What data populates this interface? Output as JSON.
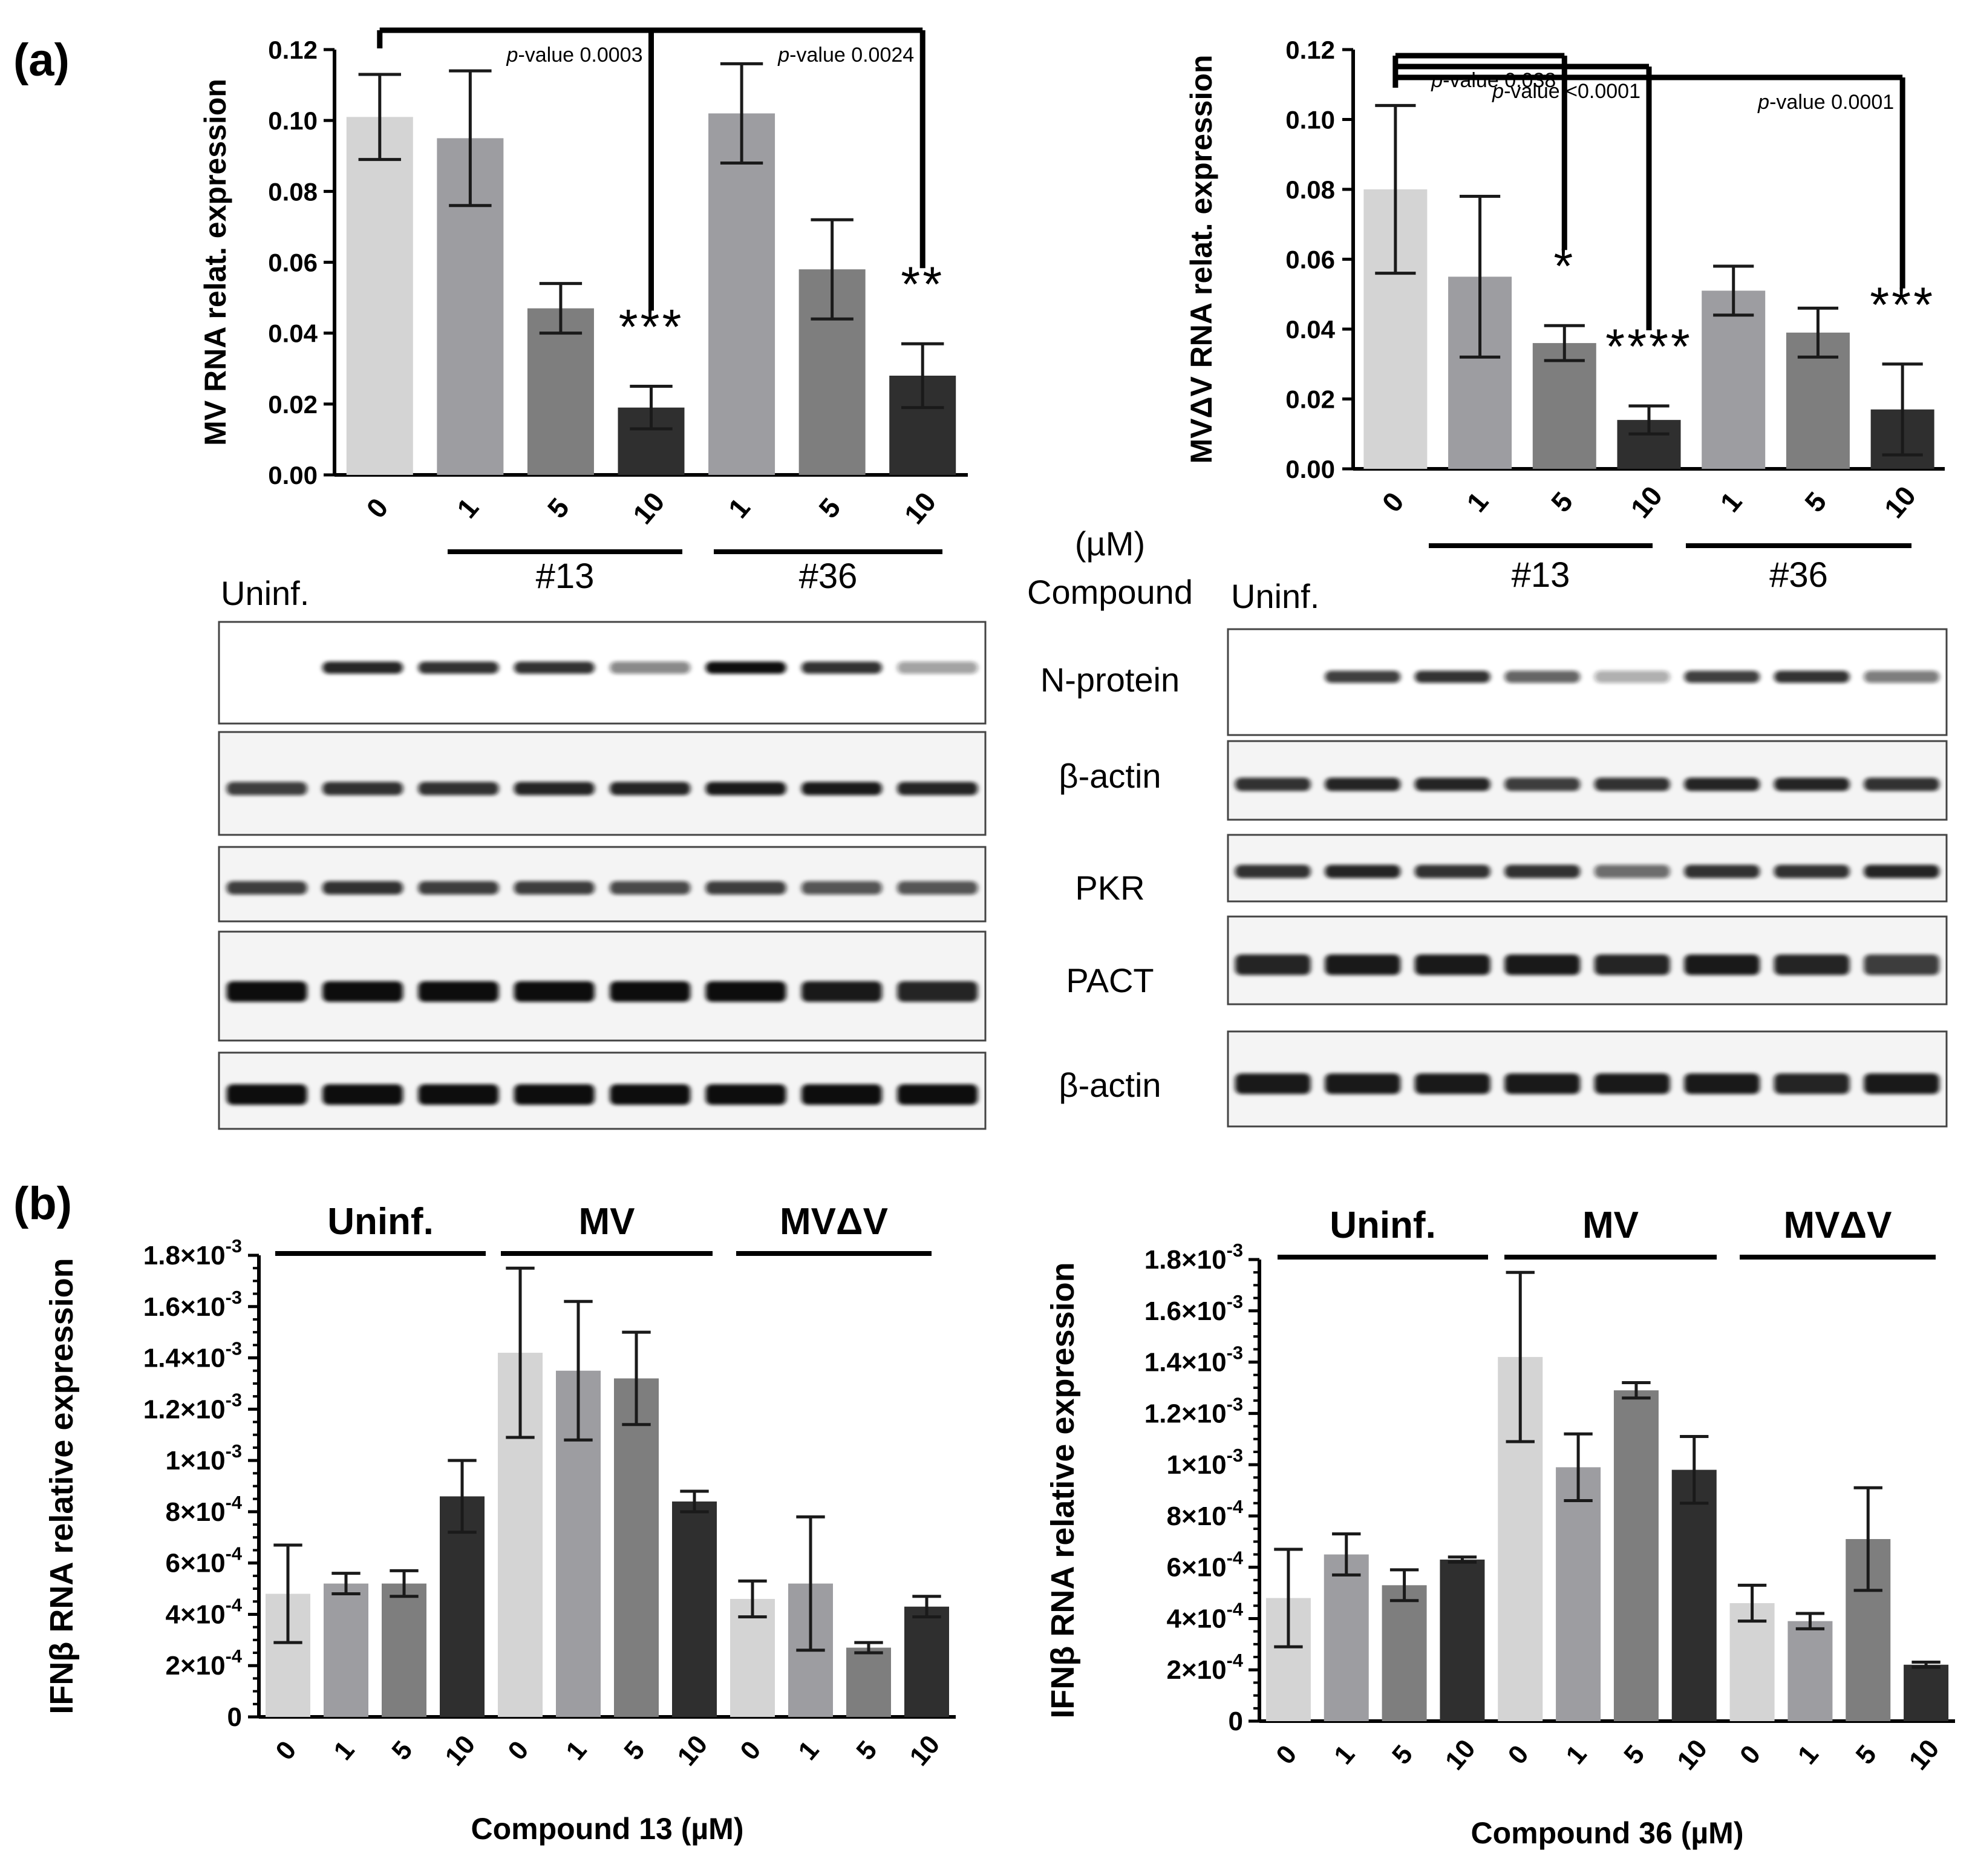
{
  "panel_labels": {
    "a": "(a)",
    "b": "(b)"
  },
  "middle_labels": {
    "unit": "(µM)",
    "compound": "Compound"
  },
  "blot_labels": [
    "N-protein",
    "β-actin",
    "PKR",
    "PACT",
    "β-actin"
  ],
  "colors": {
    "c0": "#d4d4d4",
    "c1": "#9d9da1",
    "c5": "#7e7e7e",
    "c10": "#2f2f2f",
    "axis": "#000000",
    "error": "#1a1a1a"
  },
  "chart_data": [
    {
      "id": "a-left",
      "type": "bar",
      "ylabel": "MV RNA relat. expression",
      "ylim": [
        0,
        0.12
      ],
      "yticks": [
        "0.00",
        "0.02",
        "0.04",
        "0.06",
        "0.08",
        "0.10",
        "0.12"
      ],
      "categories": [
        "0",
        "1",
        "5",
        "10",
        "1",
        "5",
        "10"
      ],
      "values": [
        0.101,
        0.095,
        0.047,
        0.019,
        0.102,
        0.058,
        0.028
      ],
      "errors": [
        0.012,
        0.019,
        0.007,
        0.006,
        0.014,
        0.014,
        0.009
      ],
      "groups": [
        {
          "label": "#13",
          "from": 1,
          "to": 3
        },
        {
          "label": "#36",
          "from": 4,
          "to": 6
        }
      ],
      "significance": [
        {
          "bar": 3,
          "label": "***",
          "pvalue": "p-value 0.0003"
        },
        {
          "bar": 6,
          "label": "**",
          "pvalue": "p-value 0.0024"
        }
      ],
      "uninf_label": "Uninf."
    },
    {
      "id": "a-right",
      "type": "bar",
      "ylabel": "MVΔV RNA relat. expression",
      "ylim": [
        0,
        0.12
      ],
      "yticks": [
        "0.00",
        "0.02",
        "0.04",
        "0.06",
        "0.08",
        "0.10",
        "0.12"
      ],
      "categories": [
        "0",
        "1",
        "5",
        "10",
        "1",
        "5",
        "10"
      ],
      "values": [
        0.08,
        0.055,
        0.036,
        0.014,
        0.051,
        0.039,
        0.017
      ],
      "errors": [
        0.024,
        0.023,
        0.005,
        0.004,
        0.007,
        0.007,
        0.013
      ],
      "groups": [
        {
          "label": "#13",
          "from": 1,
          "to": 3
        },
        {
          "label": "#36",
          "from": 4,
          "to": 6
        }
      ],
      "significance": [
        {
          "bar": 2,
          "label": "*",
          "pvalue": "p-value 0.038"
        },
        {
          "bar": 3,
          "label": "****",
          "pvalue": "p-value <0.0001"
        },
        {
          "bar": 6,
          "label": "***",
          "pvalue": "p-value 0.0001"
        }
      ],
      "uninf_label": "Uninf."
    },
    {
      "id": "b-left",
      "type": "bar",
      "ylabel": "IFNβ RNA relative expression",
      "xlabel": "Compound 13 (µM)",
      "ylim": [
        0,
        0.0018
      ],
      "yticks": [
        "0",
        "2×10⁻⁴",
        "4×10⁻⁴",
        "6×10⁻⁴",
        "8×10⁻⁴",
        "1×10⁻³",
        "1.2×10⁻³",
        "1.4×10⁻³",
        "1.6×10⁻³",
        "1.8×10⁻³"
      ],
      "categories": [
        "0",
        "1",
        "5",
        "10",
        "0",
        "1",
        "5",
        "10",
        "0",
        "1",
        "5",
        "10"
      ],
      "values": [
        0.00048,
        0.00052,
        0.00052,
        0.00086,
        0.00142,
        0.00135,
        0.00132,
        0.00084,
        0.00046,
        0.00052,
        0.00027,
        0.00043
      ],
      "errors": [
        0.00019,
        4e-05,
        5e-05,
        0.00014,
        0.00033,
        0.00027,
        0.00018,
        4e-05,
        7e-05,
        0.00026,
        2e-05,
        4e-05
      ],
      "groups": [
        {
          "label": "Uninf.",
          "from": 0,
          "to": 3
        },
        {
          "label": "MV",
          "from": 4,
          "to": 7
        },
        {
          "label": "MVΔV",
          "from": 8,
          "to": 11
        }
      ]
    },
    {
      "id": "b-right",
      "type": "bar",
      "ylabel": "IFNβ RNA relative expression",
      "xlabel": "Compound 36 (µM)",
      "ylim": [
        0,
        0.0018
      ],
      "yticks": [
        "0",
        "2×10⁻⁴",
        "4×10⁻⁴",
        "6×10⁻⁴",
        "8×10⁻⁴",
        "1×10⁻³",
        "1.2×10⁻³",
        "1.4×10⁻³",
        "1.6×10⁻³",
        "1.8×10⁻³"
      ],
      "categories": [
        "0",
        "1",
        "5",
        "10",
        "0",
        "1",
        "5",
        "10",
        "0",
        "1",
        "5",
        "10"
      ],
      "values": [
        0.00048,
        0.00065,
        0.00053,
        0.00063,
        0.00142,
        0.00099,
        0.00129,
        0.00098,
        0.00046,
        0.00039,
        0.00071,
        0.00022
      ],
      "errors": [
        0.00019,
        8e-05,
        6e-05,
        1e-05,
        0.00033,
        0.00013,
        3e-05,
        0.00013,
        7e-05,
        3e-05,
        0.0002,
        1e-05
      ],
      "groups": [
        {
          "label": "Uninf.",
          "from": 0,
          "to": 3
        },
        {
          "label": "MV",
          "from": 4,
          "to": 7
        },
        {
          "label": "MVΔV",
          "from": 8,
          "to": 11
        }
      ]
    }
  ]
}
